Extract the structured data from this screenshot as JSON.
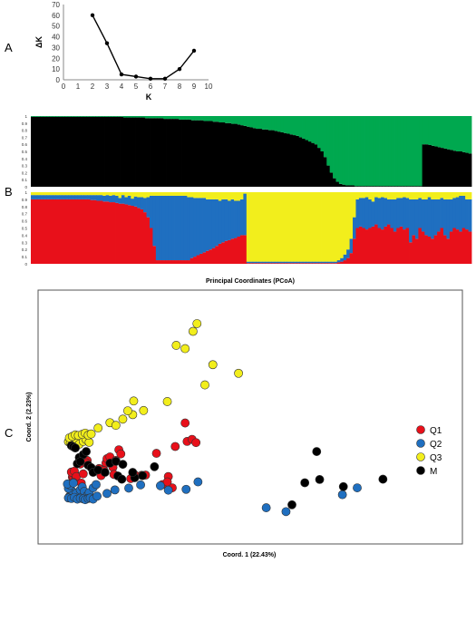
{
  "panel_labels": {
    "a": "A",
    "b": "B",
    "c": "C"
  },
  "colors": {
    "K1": "#000000",
    "K2": "#00a84f",
    "Q1": "#e8101a",
    "Q2": "#1f6fc0",
    "Q3": "#f2ee1c",
    "M": "#000000"
  },
  "chart_data": [
    {
      "type": "line",
      "panel": "A",
      "xlabel": "K",
      "ylabel": "ΔK",
      "xlim": [
        0,
        10
      ],
      "ylim": [
        0,
        70
      ],
      "x_ticks": [
        0,
        1,
        2,
        3,
        4,
        5,
        6,
        7,
        8,
        9,
        10
      ],
      "y_ticks": [
        0,
        10,
        20,
        30,
        40,
        50,
        60,
        70
      ],
      "grid": false,
      "x": [
        2,
        3,
        4,
        5,
        6,
        7,
        8,
        9
      ],
      "y": [
        60,
        34,
        5,
        3,
        1,
        1,
        10,
        27
      ]
    },
    {
      "type": "bar",
      "subtype": "stacked-proportion",
      "panel": "B-top",
      "ylim": [
        0,
        1
      ],
      "y_ticks": [
        "0",
        "0.1",
        "0.2",
        "0.3",
        "0.4",
        "0.5",
        "0.6",
        "0.7",
        "0.8",
        "0.9",
        "1"
      ],
      "series": [
        {
          "key": "K1",
          "values": [
            0.99,
            0.99,
            0.99,
            0.99,
            0.99,
            0.99,
            0.99,
            0.99,
            0.99,
            0.99,
            0.99,
            0.99,
            0.99,
            0.99,
            0.99,
            0.99,
            0.99,
            0.99,
            0.99,
            0.99,
            0.99,
            0.99,
            0.99,
            0.99,
            0.99,
            0.99,
            0.99,
            0.99,
            0.99,
            0.99,
            0.98,
            0.98,
            0.98,
            0.98,
            0.98,
            0.98,
            0.98,
            0.97,
            0.97,
            0.97,
            0.97,
            0.97,
            0.97,
            0.96,
            0.96,
            0.96,
            0.96,
            0.96,
            0.95,
            0.95,
            0.95,
            0.95,
            0.94,
            0.94,
            0.94,
            0.94,
            0.93,
            0.93,
            0.93,
            0.92,
            0.92,
            0.91,
            0.91,
            0.9,
            0.9,
            0.89,
            0.89,
            0.88,
            0.87,
            0.86,
            0.85,
            0.84,
            0.83,
            0.82,
            0.82,
            0.81,
            0.81,
            0.8,
            0.8,
            0.79,
            0.78,
            0.77,
            0.76,
            0.75,
            0.74,
            0.73,
            0.72,
            0.7,
            0.68,
            0.66,
            0.64,
            0.62,
            0.6,
            0.55,
            0.5,
            0.42,
            0.3,
            0.2,
            0.12,
            0.07,
            0.04,
            0.03,
            0.02,
            0.02,
            0.02,
            0.01,
            0.01,
            0.01,
            0.01,
            0.01,
            0.01,
            0.01,
            0.01,
            0.01,
            0.01,
            0.01,
            0.01,
            0.01,
            0.01,
            0.01,
            0.01,
            0.01,
            0.01,
            0.01,
            0.01,
            0.01,
            0.01,
            0.6,
            0.6,
            0.59,
            0.58,
            0.57,
            0.56,
            0.55,
            0.54,
            0.53,
            0.52,
            0.51,
            0.5,
            0.5,
            0.49,
            0.48,
            0.47
          ]
        }
      ]
    },
    {
      "type": "bar",
      "subtype": "stacked-proportion",
      "panel": "B-bottom",
      "ylim": [
        0,
        1
      ],
      "y_ticks": [
        "0",
        "0.1",
        "0.2",
        "0.3",
        "0.4",
        "0.5",
        "0.6",
        "0.7",
        "0.8",
        "0.9",
        "1"
      ],
      "series": [
        {
          "key": "Q1",
          "values": [
            0.9,
            0.9,
            0.9,
            0.9,
            0.9,
            0.9,
            0.9,
            0.9,
            0.9,
            0.9,
            0.9,
            0.9,
            0.9,
            0.9,
            0.9,
            0.9,
            0.9,
            0.9,
            0.9,
            0.89,
            0.89,
            0.88,
            0.88,
            0.87,
            0.87,
            0.86,
            0.86,
            0.85,
            0.84,
            0.84,
            0.83,
            0.82,
            0.81,
            0.8,
            0.78,
            0.76,
            0.72,
            0.65,
            0.5,
            0.25,
            0.05,
            0.05,
            0.05,
            0.05,
            0.05,
            0.05,
            0.05,
            0.05,
            0.05,
            0.05,
            0.05,
            0.08,
            0.1,
            0.12,
            0.14,
            0.16,
            0.18,
            0.2,
            0.22,
            0.25,
            0.28,
            0.3,
            0.32,
            0.33,
            0.35,
            0.36,
            0.38,
            0.4,
            0.4,
            0.01,
            0.01,
            0.01,
            0.01,
            0.01,
            0.01,
            0.01,
            0.01,
            0.01,
            0.01,
            0.01,
            0.01,
            0.01,
            0.01,
            0.01,
            0.01,
            0.01,
            0.01,
            0.01,
            0.01,
            0.01,
            0.01,
            0.01,
            0.01,
            0.01,
            0.01,
            0.01,
            0.01,
            0.01,
            0.02,
            0.03,
            0.05,
            0.08,
            0.15,
            0.35,
            0.5,
            0.52,
            0.5,
            0.48,
            0.5,
            0.52,
            0.55,
            0.5,
            0.48,
            0.52,
            0.55,
            0.5,
            0.45,
            0.5,
            0.52,
            0.48,
            0.5,
            0.3,
            0.4,
            0.35,
            0.5,
            0.45,
            0.4,
            0.38,
            0.35,
            0.4,
            0.45,
            0.5,
            0.4,
            0.35,
            0.45,
            0.5,
            0.48,
            0.45,
            0.5,
            0.48,
            0.45
          ]
        },
        {
          "key": "Q2",
          "values": [
            0.06,
            0.06,
            0.06,
            0.06,
            0.06,
            0.06,
            0.06,
            0.06,
            0.06,
            0.06,
            0.06,
            0.06,
            0.06,
            0.06,
            0.06,
            0.06,
            0.06,
            0.06,
            0.06,
            0.07,
            0.07,
            0.08,
            0.08,
            0.08,
            0.09,
            0.09,
            0.1,
            0.1,
            0.08,
            0.12,
            0.1,
            0.13,
            0.1,
            0.14,
            0.15,
            0.17,
            0.2,
            0.28,
            0.45,
            0.7,
            0.9,
            0.9,
            0.9,
            0.9,
            0.9,
            0.9,
            0.9,
            0.9,
            0.9,
            0.9,
            0.88,
            0.85,
            0.82,
            0.8,
            0.78,
            0.76,
            0.72,
            0.7,
            0.68,
            0.65,
            0.6,
            0.6,
            0.58,
            0.55,
            0.55,
            0.52,
            0.5,
            0.5,
            0.58,
            0.02,
            0.02,
            0.02,
            0.02,
            0.02,
            0.02,
            0.02,
            0.02,
            0.02,
            0.02,
            0.02,
            0.02,
            0.02,
            0.02,
            0.02,
            0.02,
            0.02,
            0.02,
            0.02,
            0.02,
            0.02,
            0.02,
            0.02,
            0.02,
            0.02,
            0.02,
            0.02,
            0.02,
            0.02,
            0.03,
            0.05,
            0.08,
            0.12,
            0.2,
            0.3,
            0.4,
            0.4,
            0.42,
            0.45,
            0.4,
            0.35,
            0.38,
            0.42,
            0.45,
            0.4,
            0.35,
            0.4,
            0.45,
            0.42,
            0.4,
            0.45,
            0.42,
            0.6,
            0.5,
            0.55,
            0.42,
            0.45,
            0.5,
            0.55,
            0.55,
            0.5,
            0.45,
            0.42,
            0.5,
            0.55,
            0.45,
            0.42,
            0.45,
            0.5,
            0.45,
            0.42,
            0.45
          ]
        },
        {
          "key": "Q3",
          "values": [
            0.04,
            0.04,
            0.04,
            0.04,
            0.04,
            0.04,
            0.04,
            0.04,
            0.04,
            0.04,
            0.04,
            0.04,
            0.04,
            0.04,
            0.04,
            0.04,
            0.04,
            0.04,
            0.04,
            0.04,
            0.04,
            0.04,
            0.04,
            0.05,
            0.04,
            0.05,
            0.04,
            0.05,
            0.08,
            0.04,
            0.07,
            0.05,
            0.09,
            0.06,
            0.07,
            0.07,
            0.08,
            0.07,
            0.05,
            0.05,
            0.05,
            0.05,
            0.05,
            0.05,
            0.05,
            0.05,
            0.05,
            0.05,
            0.05,
            0.05,
            0.07,
            0.07,
            0.08,
            0.08,
            0.08,
            0.08,
            0.1,
            0.1,
            0.1,
            0.1,
            0.12,
            0.1,
            0.1,
            0.12,
            0.1,
            0.12,
            0.12,
            0.1,
            0.02,
            0.97,
            0.97,
            0.97,
            0.97,
            0.97,
            0.97,
            0.97,
            0.97,
            0.97,
            0.97,
            0.97,
            0.97,
            0.97,
            0.97,
            0.97,
            0.97,
            0.97,
            0.97,
            0.97,
            0.97,
            0.97,
            0.97,
            0.97,
            0.97,
            0.97,
            0.97,
            0.97,
            0.97,
            0.97,
            0.95,
            0.92,
            0.87,
            0.8,
            0.65,
            0.35,
            0.1,
            0.08,
            0.08,
            0.07,
            0.1,
            0.13,
            0.07,
            0.08,
            0.07,
            0.08,
            0.1,
            0.1,
            0.1,
            0.08,
            0.1,
            0.07,
            0.08,
            0.1,
            0.1,
            0.1,
            0.08,
            0.1,
            0.1,
            0.07,
            0.1,
            0.1,
            0.1,
            0.08,
            0.1,
            0.1,
            0.1,
            0.08,
            0.07,
            0.05,
            0.05,
            0.1,
            0.1
          ]
        }
      ]
    },
    {
      "type": "scatter",
      "panel": "C",
      "title": "Principal Coordinates (PCoA)",
      "xlabel": "Coord. 1 (22.43%)",
      "ylabel": "Coord. 2 (2.23%)",
      "legend_position": "right",
      "series": [
        {
          "name": "Q1",
          "key": "Q1",
          "x": [
            0.9,
            1.0,
            1.2,
            0.8,
            1.1,
            1.5,
            1.7,
            2.2,
            2.4,
            2.3,
            1.3,
            1.0,
            1.8,
            2.0,
            3.8,
            3.6,
            4.3,
            4.4,
            4.7,
            5.6,
            5.8,
            5.3,
            5.0,
            4.1,
            5.1,
            6.8,
            7.2,
            7.9,
            10.0,
            10.6,
            11.0,
            10.5,
            8.3,
            9.4,
            11.3,
            12.5,
            13.0,
            12.3,
            13.4
          ],
          "y": [
            7.8,
            7.3,
            8.5,
            9.5,
            9.8,
            12.5,
            12.2,
            13.1,
            13.4,
            12.6,
            8.0,
            6.0,
            5.8,
            8.9,
            8.3,
            10.7,
            12.5,
            14.0,
            14.6,
            17.0,
            15.6,
            13.4,
            11.1,
            10.0,
            8.7,
            7.3,
            8.6,
            8.4,
            5.3,
            8.0,
            4.2,
            6.2,
            8.5,
            15.8,
            18.1,
            19.8,
            20.5,
            26.0,
            19.4
          ]
        },
        {
          "name": "Q2",
          "key": "Q2",
          "x": [
            0.6,
            0.8,
            0.9,
            0.5,
            0.7,
            0.4,
            1.0,
            1.3,
            1.7,
            1.9,
            2.1,
            2.4,
            2.6,
            3.0,
            3.3,
            0.5,
            0.8,
            1.1,
            1.4,
            1.7,
            2.0,
            2.2,
            2.5,
            2.7,
            3.0,
            3.4,
            4.4,
            5.2,
            6.6,
            7.8,
            9.8,
            10.6,
            12.4,
            13.6,
            20.5,
            22.5,
            28.2,
            29.7
          ],
          "y": [
            1.3,
            2.1,
            3.0,
            4.0,
            5.0,
            5.5,
            5.8,
            2.4,
            3.5,
            4.5,
            3.0,
            1.6,
            2.6,
            4.2,
            5.3,
            0.8,
            0.6,
            1.0,
            0.4,
            0.7,
            0.5,
            0.2,
            0.6,
            0.8,
            0.4,
            1.4,
            2.3,
            3.5,
            4.1,
            5.2,
            4.9,
            3.4,
            3.7,
            6.2,
            -2.5,
            -3.8,
            1.9,
            4.2
          ]
        },
        {
          "name": "Q3",
          "key": "Q3",
          "x": [
            0.5,
            0.7,
            1.0,
            1.3,
            1.6,
            2.0,
            2.3,
            2.6,
            0.6,
            0.9,
            1.2,
            1.5,
            1.9,
            2.2,
            2.5,
            2.8,
            3.5,
            4.7,
            6.0,
            7.0,
            8.1,
            10.5,
            14.3,
            17.7,
            15.1,
            12.3,
            13.1,
            13.5,
            11.4,
            6.5,
            7.1,
            5.3
          ],
          "y": [
            19.7,
            19.3,
            20.1,
            19.4,
            18.9,
            19.8,
            20.4,
            19.5,
            21.0,
            21.5,
            22.0,
            21.8,
            22.2,
            22.6,
            21.9,
            22.3,
            24.3,
            26.1,
            27.3,
            28.8,
            30.2,
            33.2,
            38.8,
            42.7,
            45.6,
            51.0,
            56.8,
            59.4,
            52.1,
            30.1,
            33.4,
            25.2
          ]
        },
        {
          "name": "M",
          "key": "M",
          "x": [
            0.8,
            1.0,
            1.2,
            1.6,
            2.0,
            2.3,
            1.4,
            1.7,
            2.5,
            2.8,
            3.0,
            3.5,
            4.2,
            5.5,
            5.9,
            7.2,
            8.0,
            9.2,
            4.7,
            5.3,
            6.0,
            7.0,
            24.4,
            25.6,
            25.9,
            23.1,
            28.3,
            32.3
          ],
          "y": [
            18.4,
            18.0,
            17.6,
            14.4,
            15.4,
            16.4,
            12.3,
            13.0,
            11.8,
            11.0,
            9.4,
            10.2,
            9.4,
            8.2,
            7.1,
            7.6,
            8.3,
            11.3,
            12.5,
            13.1,
            12.1,
            9.4,
            5.9,
            16.4,
            7.0,
            -1.5,
            4.6,
            7.1
          ]
        }
      ],
      "legend": [
        {
          "label": "Q1",
          "key": "Q1"
        },
        {
          "label": "Q2",
          "key": "Q2"
        },
        {
          "label": "Q3",
          "key": "Q3"
        },
        {
          "label": "M",
          "key": "M"
        }
      ]
    }
  ]
}
